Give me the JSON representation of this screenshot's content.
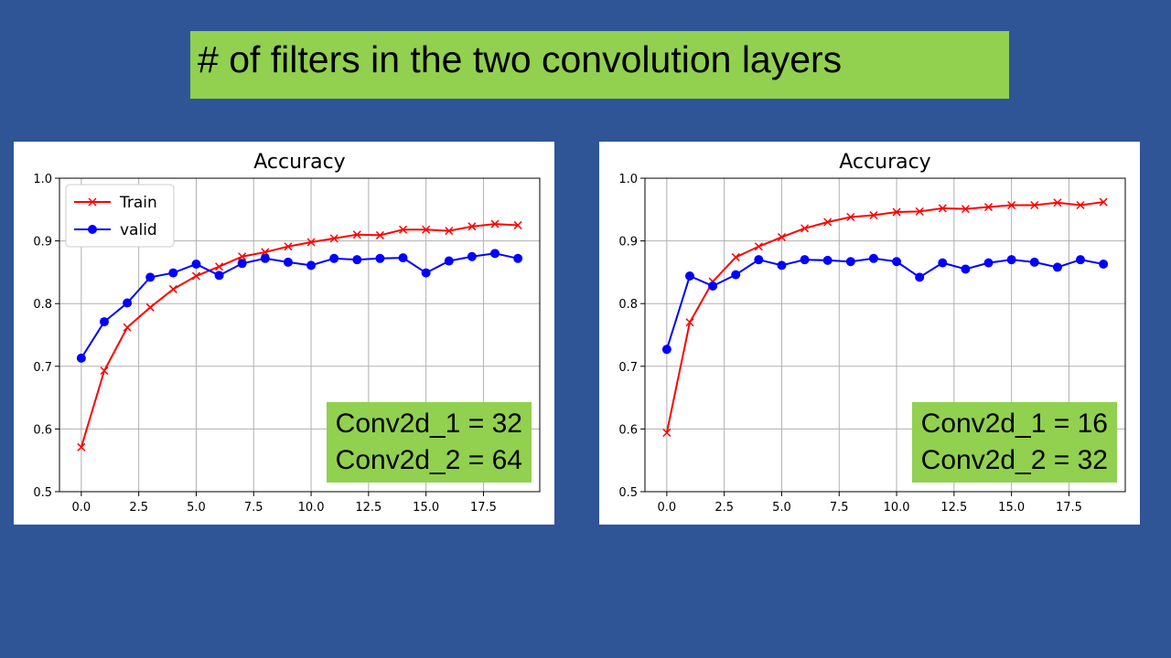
{
  "slide": {
    "title": "# of filters in the two convolution layers",
    "background": "#2f5597",
    "accent": "#92d050"
  },
  "panels": [
    {
      "annotation": [
        "Conv2d_1 = 32",
        "Conv2d_2 = 64"
      ]
    },
    {
      "annotation": [
        "Conv2d_1 = 16",
        "Conv2d_2 = 32"
      ]
    }
  ],
  "chart_data": [
    {
      "type": "line",
      "title": "Accuracy",
      "xlabel": "",
      "ylabel": "",
      "xlim": [
        -0.95,
        19.95
      ],
      "ylim": [
        0.5,
        1.0
      ],
      "xticks": [
        0.0,
        2.5,
        5.0,
        7.5,
        10.0,
        12.5,
        15.0,
        17.5
      ],
      "xtick_labels": [
        "0.0",
        "2.5",
        "5.0",
        "7.5",
        "10.0",
        "12.5",
        "15.0",
        "17.5"
      ],
      "yticks": [
        0.5,
        0.6,
        0.7,
        0.8,
        0.9,
        1.0
      ],
      "ytick_labels": [
        "0.5",
        "0.6",
        "0.7",
        "0.8",
        "0.9",
        "1.0"
      ],
      "grid": true,
      "legend": "upper-left",
      "x": [
        0,
        1,
        2,
        3,
        4,
        5,
        6,
        7,
        8,
        9,
        10,
        11,
        12,
        13,
        14,
        15,
        16,
        17,
        18,
        19
      ],
      "series": [
        {
          "name": "Train",
          "color": "#ff0000",
          "marker": "x",
          "values": [
            0.571,
            0.693,
            0.762,
            0.794,
            0.823,
            0.844,
            0.859,
            0.875,
            0.882,
            0.891,
            0.898,
            0.904,
            0.91,
            0.909,
            0.918,
            0.918,
            0.916,
            0.923,
            0.927,
            0.925
          ]
        },
        {
          "name": "valid",
          "color": "#0000ff",
          "marker": "o",
          "values": [
            0.713,
            0.771,
            0.801,
            0.842,
            0.849,
            0.863,
            0.845,
            0.864,
            0.872,
            0.866,
            0.861,
            0.872,
            0.87,
            0.872,
            0.873,
            0.849,
            0.868,
            0.875,
            0.88,
            0.872
          ]
        }
      ]
    },
    {
      "type": "line",
      "title": "Accuracy",
      "xlabel": "",
      "ylabel": "",
      "xlim": [
        -0.95,
        19.95
      ],
      "ylim": [
        0.5,
        1.0
      ],
      "xticks": [
        0.0,
        2.5,
        5.0,
        7.5,
        10.0,
        12.5,
        15.0,
        17.5
      ],
      "xtick_labels": [
        "0.0",
        "2.5",
        "5.0",
        "7.5",
        "10.0",
        "12.5",
        "15.0",
        "17.5"
      ],
      "yticks": [
        0.5,
        0.6,
        0.7,
        0.8,
        0.9,
        1.0
      ],
      "ytick_labels": [
        "0.5",
        "0.6",
        "0.7",
        "0.8",
        "0.9",
        "1.0"
      ],
      "grid": true,
      "legend": "none",
      "x": [
        0,
        1,
        2,
        3,
        4,
        5,
        6,
        7,
        8,
        9,
        10,
        11,
        12,
        13,
        14,
        15,
        16,
        17,
        18,
        19
      ],
      "series": [
        {
          "name": "",
          "color": "#ff0000",
          "marker": "x",
          "values": [
            0.594,
            0.77,
            0.835,
            0.874,
            0.891,
            0.906,
            0.92,
            0.93,
            0.938,
            0.941,
            0.946,
            0.947,
            0.952,
            0.951,
            0.954,
            0.957,
            0.957,
            0.961,
            0.957,
            0.962
          ]
        },
        {
          "name": "",
          "color": "#0000ff",
          "marker": "o",
          "values": [
            0.727,
            0.844,
            0.828,
            0.846,
            0.87,
            0.861,
            0.87,
            0.869,
            0.867,
            0.872,
            0.867,
            0.842,
            0.865,
            0.855,
            0.865,
            0.87,
            0.866,
            0.858,
            0.87,
            0.863
          ]
        }
      ]
    }
  ]
}
